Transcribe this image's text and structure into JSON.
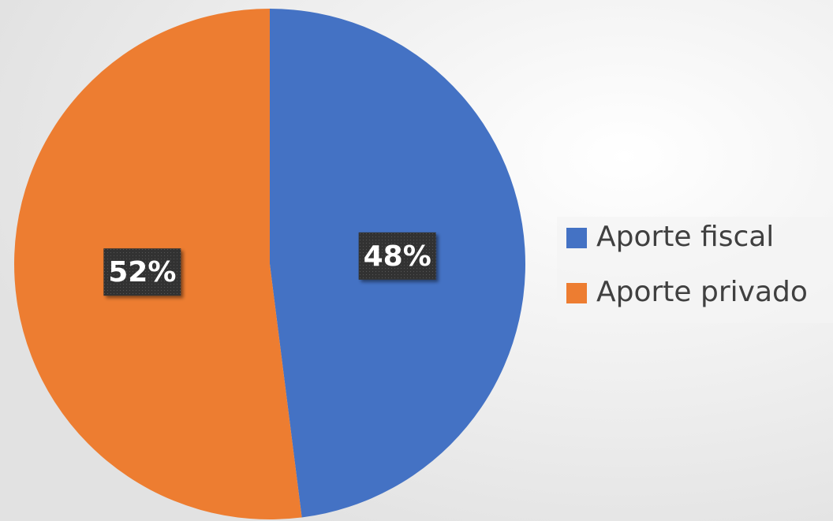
{
  "chart_data": {
    "type": "pie",
    "categories": [
      "Aporte fiscal",
      "Aporte privado"
    ],
    "values": [
      48,
      52
    ],
    "value_labels": [
      "48%",
      "52%"
    ],
    "colors": [
      "#4472c4",
      "#ed7d31"
    ],
    "legend": "right"
  }
}
